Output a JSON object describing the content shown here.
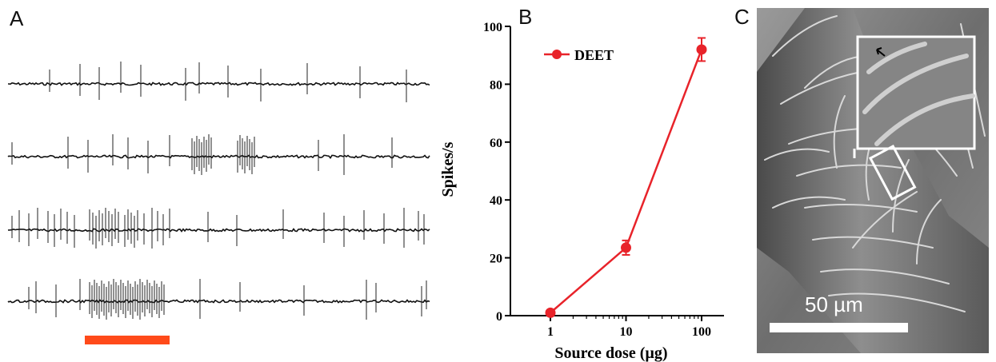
{
  "panels": {
    "a": "A",
    "b": "B",
    "c": "C"
  },
  "traces": {
    "spikes": [
      [
        62,
        100,
        124,
        151,
        176,
        232,
        249,
        285,
        326,
        384,
        450,
        508
      ],
      [
        15,
        85,
        110,
        141,
        160,
        185,
        212,
        240,
        243,
        246,
        249,
        252,
        255,
        258,
        261,
        264,
        297,
        300,
        303,
        306,
        309,
        312,
        315,
        318,
        398,
        430,
        490
      ],
      [
        15,
        24,
        36,
        47,
        60,
        68,
        76,
        84,
        93,
        112,
        116,
        120,
        124,
        128,
        132,
        136,
        140,
        144,
        148,
        156,
        160,
        164,
        168,
        172,
        180,
        190,
        197,
        204,
        212,
        260,
        296,
        354,
        405,
        430,
        455,
        480,
        505,
        523,
        530
      ],
      [
        36,
        45,
        70,
        100,
        112,
        115,
        118,
        121,
        124,
        127,
        130,
        133,
        136,
        139,
        142,
        145,
        148,
        151,
        154,
        157,
        160,
        163,
        166,
        169,
        172,
        175,
        178,
        181,
        184,
        187,
        190,
        193,
        196,
        199,
        202,
        205,
        250,
        300,
        380,
        458,
        470,
        527,
        533
      ]
    ],
    "stimulus_color": "#ff4a1a"
  },
  "chart_data": {
    "type": "line",
    "xscale": "log",
    "x": [
      1,
      10,
      100
    ],
    "series": [
      {
        "name": "DEET",
        "values": [
          1,
          23.5,
          92
        ],
        "errors": [
          0.5,
          2.5,
          4
        ],
        "color": "#e8232a"
      }
    ],
    "xticks": [
      "1",
      "10",
      "100"
    ],
    "yticks": [
      "0",
      "20",
      "40",
      "60",
      "80",
      "100"
    ],
    "ylim": [
      0,
      100
    ],
    "xlabel": "Source dose (µg)",
    "ylabel": "Spikes/s",
    "legend": "top-left"
  },
  "sem": {
    "scale_label": "50 µm"
  }
}
